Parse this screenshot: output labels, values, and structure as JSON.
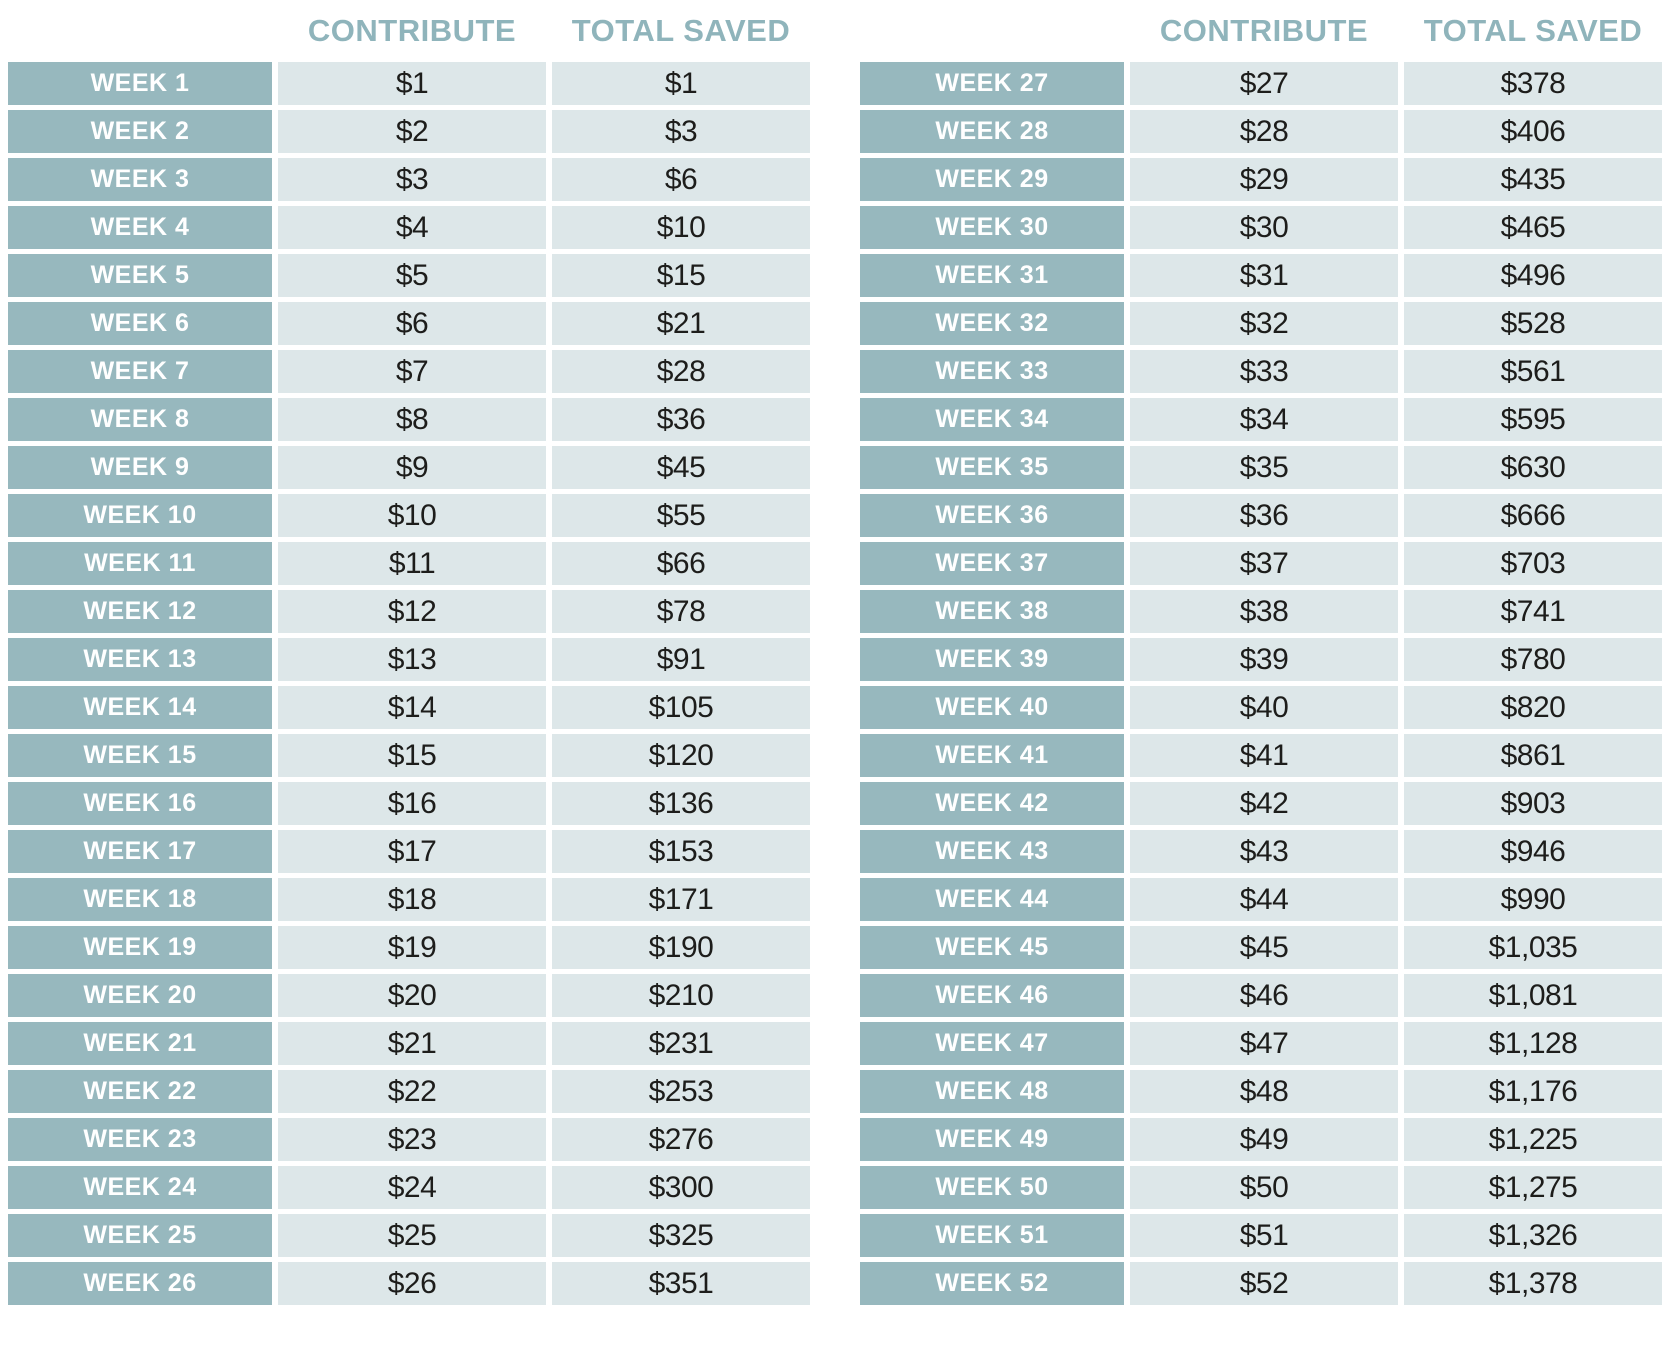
{
  "headers": {
    "week": "",
    "contribute": "CONTRIBUTE",
    "total_saved": "TOTAL SAVED"
  },
  "colors": {
    "week_cell_bg": "#97b8be",
    "week_cell_text": "#ffffff",
    "value_cell_bg": "#dde7e9",
    "value_text": "#1d1d1b",
    "header_text": "#8fb4bb",
    "page_bg": "#ffffff"
  },
  "tables": [
    {
      "name": "weeks-1-26",
      "rows": [
        {
          "week": "WEEK 1",
          "contribute": "$1",
          "total": "$1"
        },
        {
          "week": "WEEK 2",
          "contribute": "$2",
          "total": "$3"
        },
        {
          "week": "WEEK 3",
          "contribute": "$3",
          "total": "$6"
        },
        {
          "week": "WEEK 4",
          "contribute": "$4",
          "total": "$10"
        },
        {
          "week": "WEEK 5",
          "contribute": "$5",
          "total": "$15"
        },
        {
          "week": "WEEK 6",
          "contribute": "$6",
          "total": "$21"
        },
        {
          "week": "WEEK 7",
          "contribute": "$7",
          "total": "$28"
        },
        {
          "week": "WEEK 8",
          "contribute": "$8",
          "total": "$36"
        },
        {
          "week": "WEEK 9",
          "contribute": "$9",
          "total": "$45"
        },
        {
          "week": "WEEK 10",
          "contribute": "$10",
          "total": "$55"
        },
        {
          "week": "WEEK 11",
          "contribute": "$11",
          "total": "$66"
        },
        {
          "week": "WEEK 12",
          "contribute": "$12",
          "total": "$78"
        },
        {
          "week": "WEEK 13",
          "contribute": "$13",
          "total": "$91"
        },
        {
          "week": "WEEK 14",
          "contribute": "$14",
          "total": "$105"
        },
        {
          "week": "WEEK 15",
          "contribute": "$15",
          "total": "$120"
        },
        {
          "week": "WEEK 16",
          "contribute": "$16",
          "total": "$136"
        },
        {
          "week": "WEEK 17",
          "contribute": "$17",
          "total": "$153"
        },
        {
          "week": "WEEK 18",
          "contribute": "$18",
          "total": "$171"
        },
        {
          "week": "WEEK 19",
          "contribute": "$19",
          "total": "$190"
        },
        {
          "week": "WEEK 20",
          "contribute": "$20",
          "total": "$210"
        },
        {
          "week": "WEEK 21",
          "contribute": "$21",
          "total": "$231"
        },
        {
          "week": "WEEK 22",
          "contribute": "$22",
          "total": "$253"
        },
        {
          "week": "WEEK 23",
          "contribute": "$23",
          "total": "$276"
        },
        {
          "week": "WEEK 24",
          "contribute": "$24",
          "total": "$300"
        },
        {
          "week": "WEEK 25",
          "contribute": "$25",
          "total": "$325"
        },
        {
          "week": "WEEK 26",
          "contribute": "$26",
          "total": "$351"
        }
      ]
    },
    {
      "name": "weeks-27-52",
      "rows": [
        {
          "week": "WEEK 27",
          "contribute": "$27",
          "total": "$378"
        },
        {
          "week": "WEEK 28",
          "contribute": "$28",
          "total": "$406"
        },
        {
          "week": "WEEK 29",
          "contribute": "$29",
          "total": "$435"
        },
        {
          "week": "WEEK 30",
          "contribute": "$30",
          "total": "$465"
        },
        {
          "week": "WEEK 31",
          "contribute": "$31",
          "total": "$496"
        },
        {
          "week": "WEEK 32",
          "contribute": "$32",
          "total": "$528"
        },
        {
          "week": "WEEK 33",
          "contribute": "$33",
          "total": "$561"
        },
        {
          "week": "WEEK 34",
          "contribute": "$34",
          "total": "$595"
        },
        {
          "week": "WEEK 35",
          "contribute": "$35",
          "total": "$630"
        },
        {
          "week": "WEEK 36",
          "contribute": "$36",
          "total": "$666"
        },
        {
          "week": "WEEK 37",
          "contribute": "$37",
          "total": "$703"
        },
        {
          "week": "WEEK 38",
          "contribute": "$38",
          "total": "$741"
        },
        {
          "week": "WEEK 39",
          "contribute": "$39",
          "total": "$780"
        },
        {
          "week": "WEEK 40",
          "contribute": "$40",
          "total": "$820"
        },
        {
          "week": "WEEK 41",
          "contribute": "$41",
          "total": "$861"
        },
        {
          "week": "WEEK 42",
          "contribute": "$42",
          "total": "$903"
        },
        {
          "week": "WEEK 43",
          "contribute": "$43",
          "total": "$946"
        },
        {
          "week": "WEEK 44",
          "contribute": "$44",
          "total": "$990"
        },
        {
          "week": "WEEK 45",
          "contribute": "$45",
          "total": "$1,035"
        },
        {
          "week": "WEEK 46",
          "contribute": "$46",
          "total": "$1,081"
        },
        {
          "week": "WEEK 47",
          "contribute": "$47",
          "total": "$1,128"
        },
        {
          "week": "WEEK 48",
          "contribute": "$48",
          "total": "$1,176"
        },
        {
          "week": "WEEK 49",
          "contribute": "$49",
          "total": "$1,225"
        },
        {
          "week": "WEEK 50",
          "contribute": "$50",
          "total": "$1,275"
        },
        {
          "week": "WEEK 51",
          "contribute": "$51",
          "total": "$1,326"
        },
        {
          "week": "WEEK 52",
          "contribute": "$52",
          "total": "$1,378"
        }
      ]
    }
  ]
}
